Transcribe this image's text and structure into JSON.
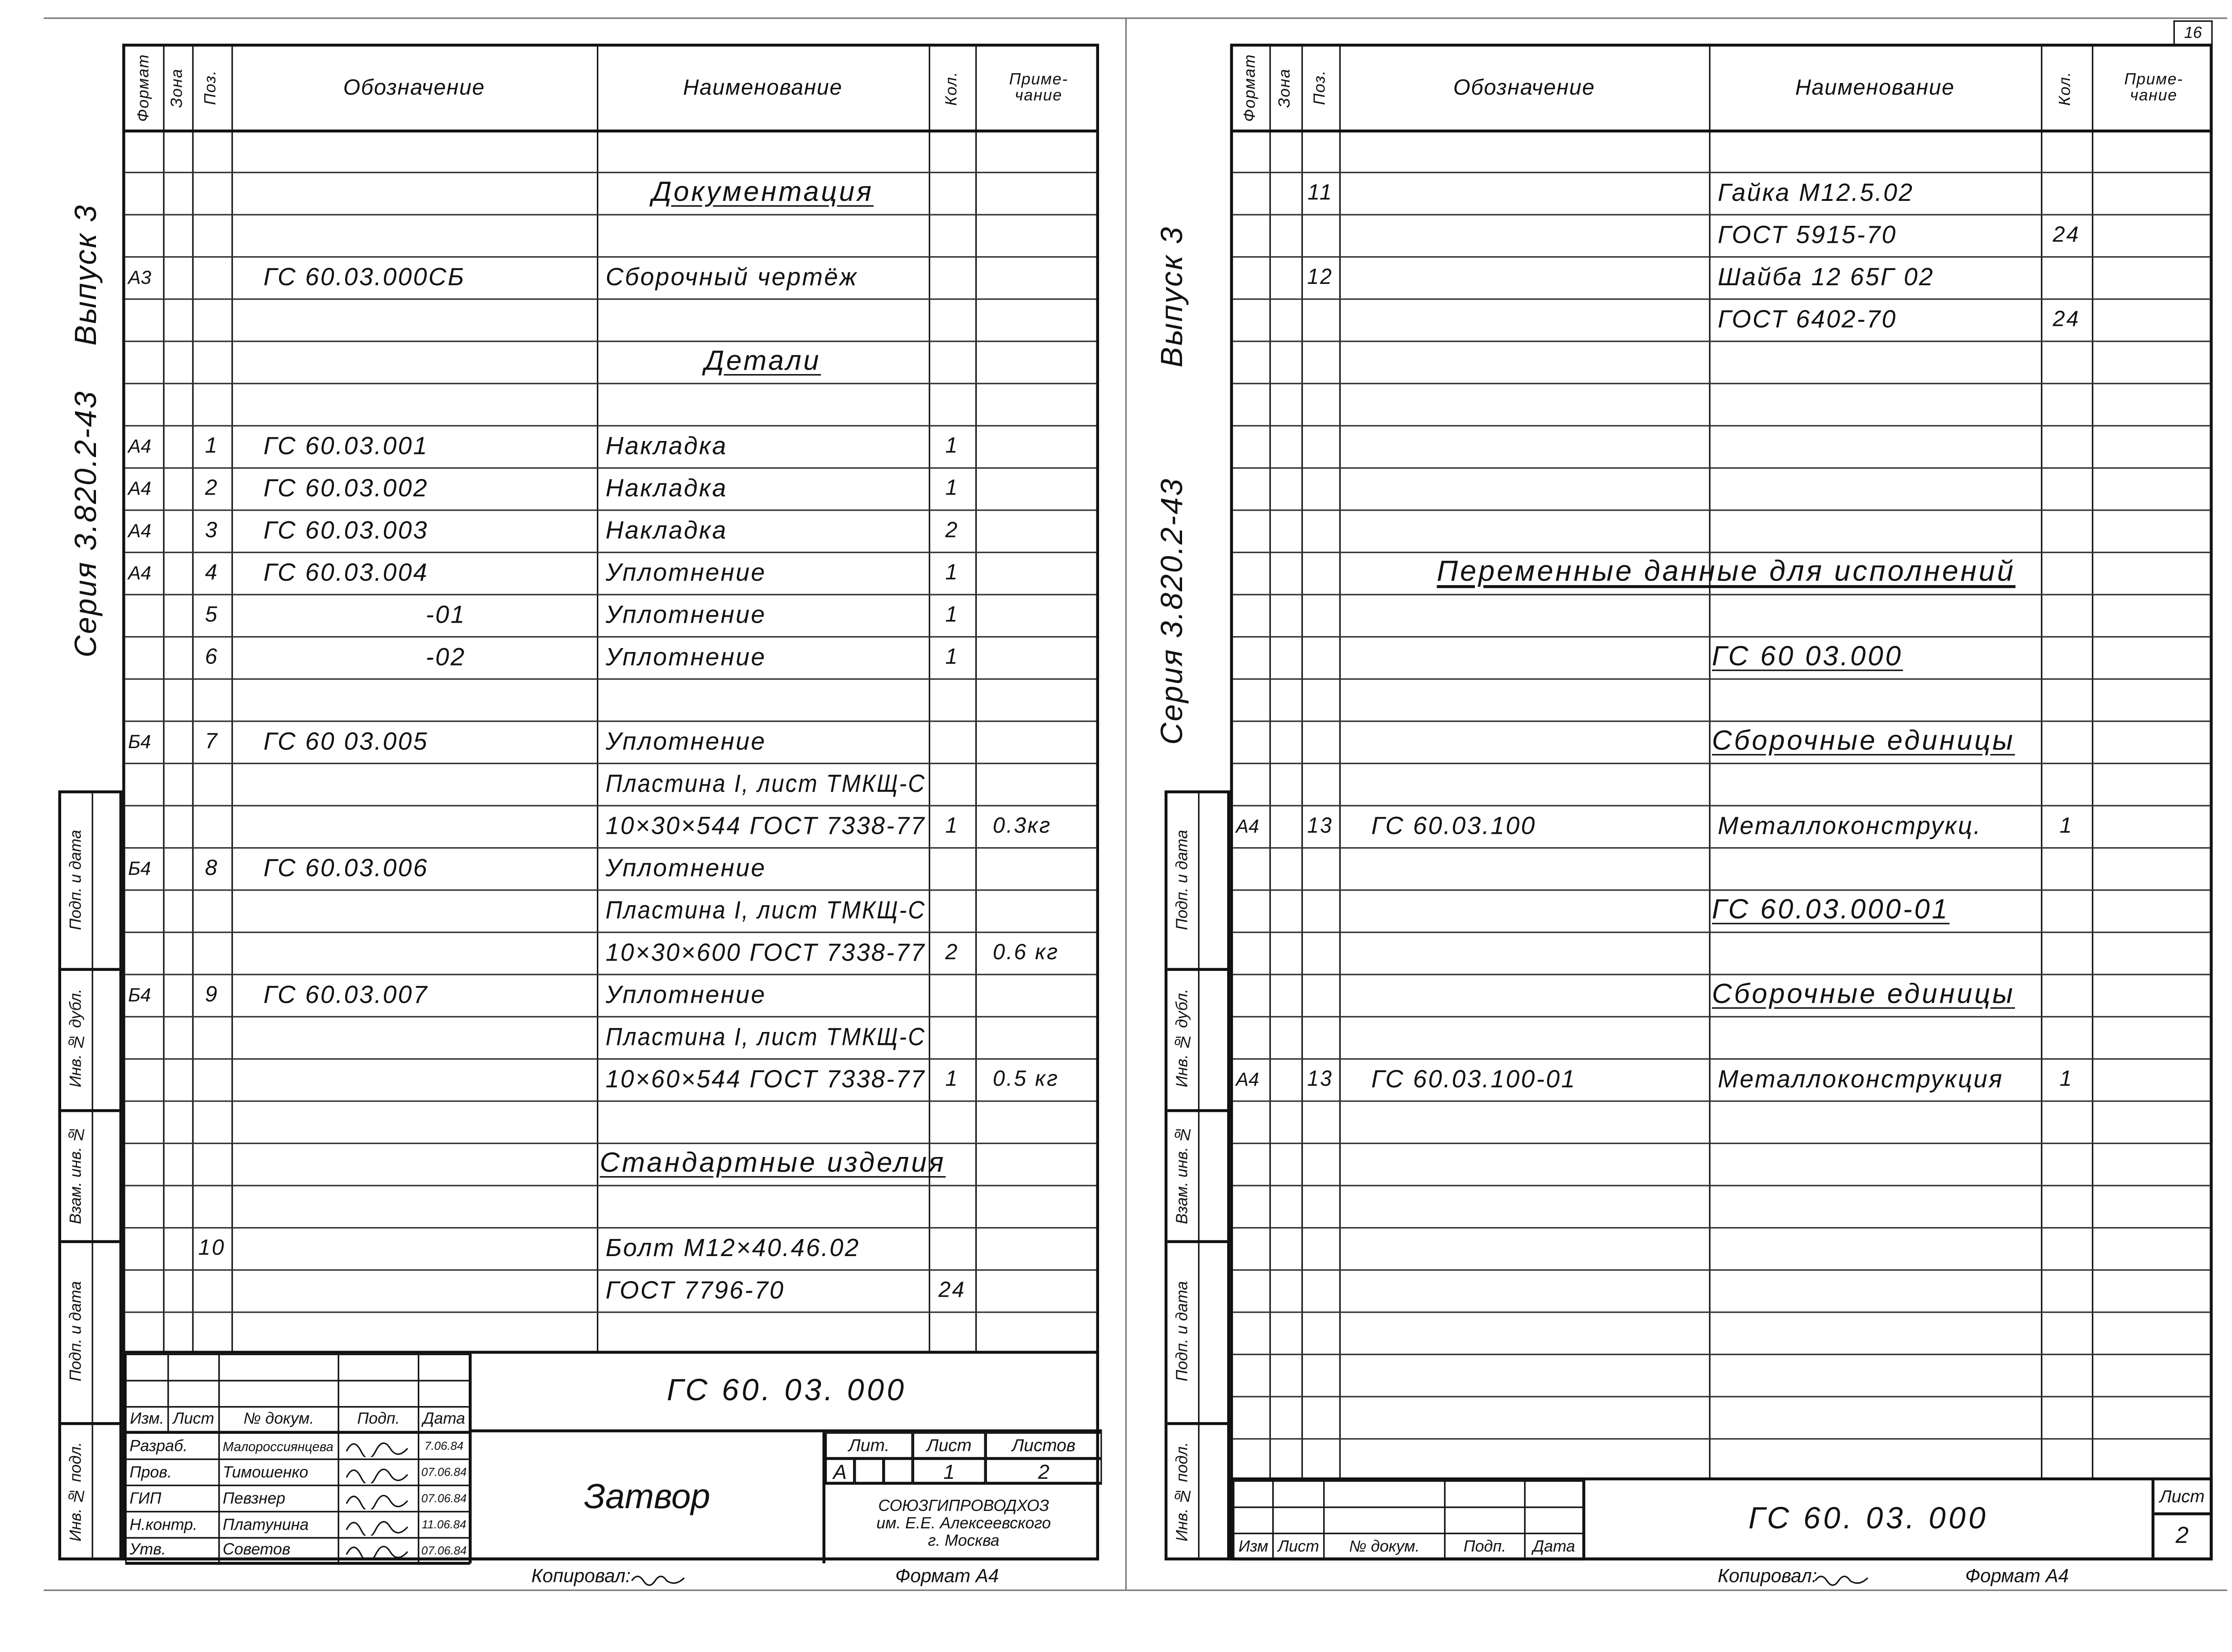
{
  "headers": {
    "format": "Формат",
    "zone": "Зона",
    "pos": "Поз.",
    "designation": "Обозначение",
    "name": "Наименование",
    "qty": "Кол.",
    "note": "Приме-чание"
  },
  "side_strip": [
    "Подп. и дата",
    "Инв. № дубл.",
    "Взам. инв. №",
    "Подп. и дата",
    "Инв. № подл."
  ],
  "left_sheet": {
    "margin": {
      "issue": "Выпуск 3",
      "series": "Серия 3.820.2-43"
    },
    "rows": [
      {},
      {
        "section": "Документация"
      },
      {},
      {
        "f": "А3",
        "d": "ГС 60.03.000СБ",
        "n": "Сборочный чертёж"
      },
      {},
      {
        "section": "Детали"
      },
      {},
      {
        "f": "А4",
        "p": "1",
        "d": "ГС 60.03.001",
        "n": "Накладка",
        "q": "1"
      },
      {
        "f": "А4",
        "p": "2",
        "d": "ГС 60.03.002",
        "n": "Накладка",
        "q": "1"
      },
      {
        "f": "А4",
        "p": "3",
        "d": "ГС 60.03.003",
        "n": "Накладка",
        "q": "2"
      },
      {
        "f": "А4",
        "p": "4",
        "d": "ГС 60.03.004",
        "n": "Уплотнение",
        "q": "1"
      },
      {
        "p": "5",
        "d": "-01",
        "n": "Уплотнение",
        "q": "1"
      },
      {
        "p": "6",
        "d": "-02",
        "n": "Уплотнение",
        "q": "1"
      },
      {},
      {
        "f": "Б4",
        "p": "7",
        "d": "ГС 60 03.005",
        "n": "Уплотнение"
      },
      {
        "n": "Пластина I, лист ТМКЩ-С"
      },
      {
        "n": "10×30×544 ГОСТ 7338-77",
        "q": "1",
        "r": "0.3кг"
      },
      {
        "f": "Б4",
        "p": "8",
        "d": "ГС 60.03.006",
        "n": "Уплотнение"
      },
      {
        "n": "Пластина I, лист ТМКЩ-С"
      },
      {
        "n": "10×30×600 ГОСТ 7338-77",
        "q": "2",
        "r": "0.6 кг"
      },
      {
        "f": "Б4",
        "p": "9",
        "d": "ГС 60.03.007",
        "n": "Уплотнение"
      },
      {
        "n": "Пластина I, лист ТМКЩ-С"
      },
      {
        "n": "10×60×544 ГОСТ 7338-77",
        "q": "1",
        "r": "0.5 кг"
      },
      {},
      {
        "section": "Стандартные изделия"
      },
      {},
      {
        "p": "10",
        "n": "Болт М12×40.46.02"
      },
      {
        "n": "ГОСТ 7796-70",
        "q": "24"
      },
      {}
    ],
    "title_block": {
      "col_headers": [
        "Изм.",
        "Лист",
        "№ докум.",
        "Подп.",
        "Дата"
      ],
      "staff": [
        {
          "role": "Разраб.",
          "name": "Малороссиянцева",
          "date": "7.06.84"
        },
        {
          "role": "Пров.",
          "name": "Тимошенко",
          "date": "07.06.84"
        },
        {
          "role": "ГИП",
          "name": "Певзнер",
          "date": "07.06.84"
        },
        {
          "role": "Н.контр.",
          "name": "Платунина",
          "date": "11.06.84"
        },
        {
          "role": "Утв.",
          "name": "Советов",
          "date": "07.06.84"
        }
      ],
      "designation": "ГС 60. 03. 000",
      "product_name": "Затвор",
      "lit_label": "Лит.",
      "sheet_label": "Лист",
      "sheets_label": "Листов",
      "lit": "А",
      "sheet": "1",
      "sheets": "2",
      "organization": [
        "СОЮЗГИПРОВОДХОЗ",
        "им. Е.Е. Алексеевского",
        "г. Москва"
      ]
    },
    "footer": {
      "copied_by": "Копировал:",
      "format": "Формат А4"
    }
  },
  "right_sheet": {
    "sheet_number_box": "16",
    "margin": {
      "issue": "Выпуск 3",
      "series": "Серия 3.820.2-43"
    },
    "rows": [
      {},
      {
        "p": "11",
        "n": "Гайка М12.5.02"
      },
      {
        "n": "ГОСТ 5915-70",
        "q": "24"
      },
      {
        "p": "12",
        "n": "Шайба 12 65Г 02"
      },
      {
        "n": "ГОСТ 6402-70",
        "q": "24"
      },
      {},
      {},
      {},
      {},
      {},
      {
        "title": "Переменные данные для исполнений"
      },
      {},
      {
        "section": "ГС 60 03.000"
      },
      {},
      {
        "section": "Сборочные единицы"
      },
      {},
      {
        "f": "А4",
        "p": "13",
        "d": "ГС 60.03.100",
        "n": "Металлоконструкц.",
        "q": "1"
      },
      {},
      {
        "section": "ГС 60.03.000-01"
      },
      {},
      {
        "section": "Сборочные единицы"
      },
      {},
      {
        "f": "А4",
        "p": "13",
        "d": "ГС 60.03.100-01",
        "n": "Металлоконструкция",
        "q": "1"
      },
      {},
      {},
      {},
      {},
      {},
      {},
      {},
      {},
      {}
    ],
    "title_block": {
      "col_headers": [
        "Изм",
        "Лист",
        "№ докум.",
        "Подп.",
        "Дата"
      ],
      "designation": "ГС 60. 03. 000",
      "sheet_label": "Лист",
      "sheet": "2"
    },
    "footer": {
      "copied_by": "Копировал:",
      "format": "Формат А4"
    }
  }
}
